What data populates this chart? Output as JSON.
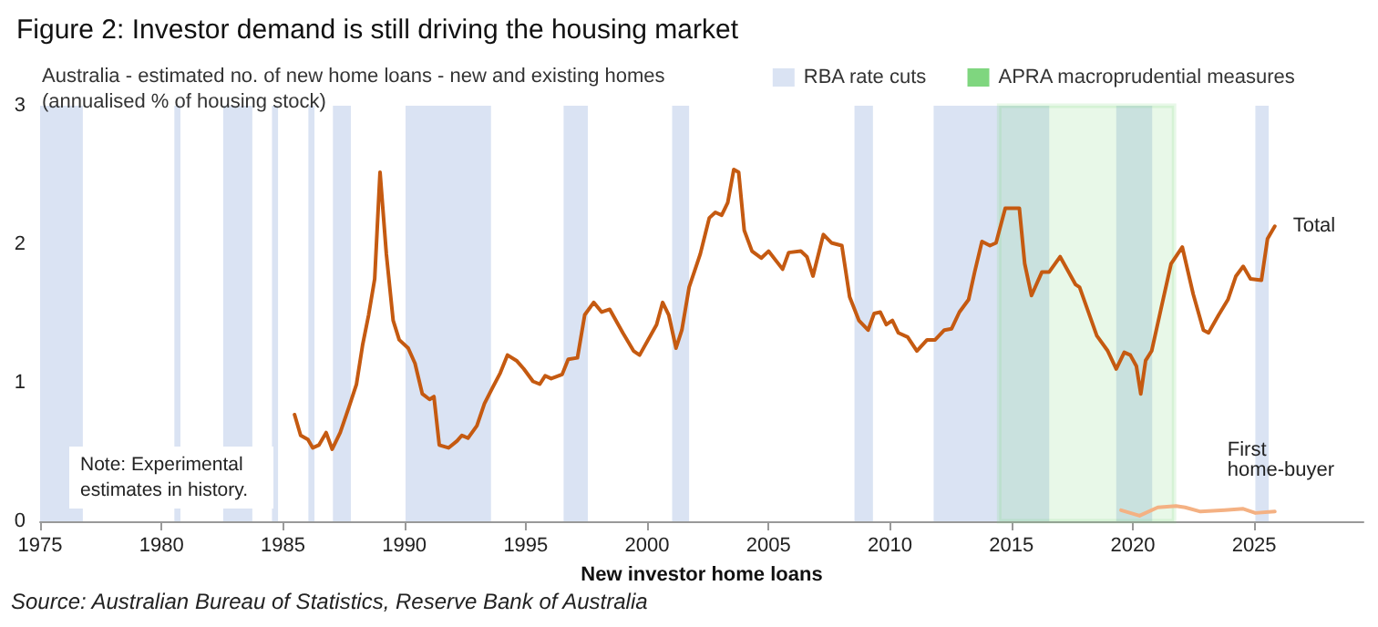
{
  "chart_data": {
    "type": "line",
    "title": "Figure 2: Investor demand is still driving the housing market",
    "subtitle": "Australia - estimated no. of new home loans - new and existing homes\n(annualised % of housing stock)",
    "xlabel": "New investor home loans",
    "annotations": [
      "Note: Experimental estimates in history.",
      "Source: Australian Bureau of Statistics, Reserve Bank of Australia"
    ],
    "series": [
      {
        "name": "Total",
        "color": "#c55a11",
        "x": [
          1985.48,
          1985.73,
          1986.03,
          1986.23,
          1986.48,
          1986.78,
          1987.03,
          1987.36,
          1987.73,
          1988.03,
          1988.28,
          1988.53,
          1988.78,
          1989.0,
          1989.26,
          1989.54,
          1989.79,
          1990.16,
          1990.44,
          1990.74,
          1991.04,
          1991.22,
          1991.44,
          1991.82,
          1992.17,
          1992.37,
          1992.62,
          1992.99,
          1993.3,
          1993.62,
          1993.95,
          1994.25,
          1994.62,
          1994.92,
          1995.3,
          1995.58,
          1995.8,
          1996.05,
          1996.5,
          1996.75,
          1997.13,
          1997.43,
          1997.8,
          1998.13,
          1998.46,
          1999.0,
          1999.44,
          1999.69,
          2000.39,
          2000.64,
          2000.89,
          2001.19,
          2001.43,
          2001.73,
          2002.19,
          2002.56,
          2002.81,
          2003.07,
          2003.32,
          2003.57,
          2003.77,
          2004.0,
          2004.32,
          2004.7,
          2005.0,
          2005.58,
          2005.83,
          2006.33,
          2006.58,
          2006.83,
          2007.26,
          2007.59,
          2008.02,
          2008.34,
          2008.72,
          2009.1,
          2009.35,
          2009.6,
          2009.85,
          2010.1,
          2010.35,
          2010.73,
          2011.11,
          2011.53,
          2011.86,
          2012.24,
          2012.54,
          2012.86,
          2013.24,
          2013.49,
          2013.79,
          2014.12,
          2014.37,
          2014.75,
          2015.33,
          2015.55,
          2015.83,
          2016.26,
          2016.56,
          2017.01,
          2017.64,
          2017.81,
          2018.52,
          2018.97,
          2019.32,
          2019.65,
          2019.9,
          2020.15,
          2020.33,
          2020.53,
          2020.78,
          2021.16,
          2021.58,
          2022.04,
          2022.49,
          2022.91,
          2023.12,
          2023.54,
          2023.92,
          2024.25,
          2024.55,
          2024.85,
          2025.3,
          2025.55,
          2025.85
        ],
        "values": [
          0.77,
          0.62,
          0.59,
          0.53,
          0.55,
          0.64,
          0.52,
          0.64,
          0.83,
          0.99,
          1.27,
          1.49,
          1.75,
          2.52,
          1.93,
          1.45,
          1.31,
          1.25,
          1.14,
          0.92,
          0.88,
          0.9,
          0.55,
          0.53,
          0.58,
          0.62,
          0.6,
          0.69,
          0.85,
          0.96,
          1.07,
          1.2,
          1.16,
          1.1,
          1.01,
          0.99,
          1.05,
          1.03,
          1.06,
          1.17,
          1.18,
          1.49,
          1.58,
          1.51,
          1.53,
          1.36,
          1.23,
          1.2,
          1.42,
          1.58,
          1.49,
          1.25,
          1.38,
          1.69,
          1.93,
          2.19,
          2.23,
          2.21,
          2.3,
          2.54,
          2.52,
          2.1,
          1.95,
          1.9,
          1.95,
          1.82,
          1.94,
          1.95,
          1.91,
          1.77,
          2.07,
          2.01,
          1.99,
          1.62,
          1.45,
          1.38,
          1.5,
          1.51,
          1.42,
          1.45,
          1.36,
          1.33,
          1.23,
          1.31,
          1.31,
          1.38,
          1.39,
          1.51,
          1.6,
          1.8,
          2.02,
          1.99,
          2.01,
          2.26,
          2.26,
          1.86,
          1.63,
          1.8,
          1.8,
          1.91,
          1.71,
          1.69,
          1.34,
          1.23,
          1.1,
          1.22,
          1.2,
          1.12,
          0.92,
          1.16,
          1.23,
          1.53,
          1.86,
          1.98,
          1.64,
          1.38,
          1.36,
          1.49,
          1.6,
          1.77,
          1.84,
          1.75,
          1.74,
          2.04,
          2.13
        ]
      },
      {
        "name": "First home-buyer",
        "color": "#f4b183",
        "x": [
          2019.52,
          2020.28,
          2021.03,
          2021.78,
          2022.16,
          2022.79,
          2023.79,
          2024.55,
          2025.05,
          2025.85
        ],
        "values": [
          0.08,
          0.04,
          0.1,
          0.11,
          0.1,
          0.07,
          0.08,
          0.09,
          0.06,
          0.07
        ]
      }
    ],
    "xlim": [
      1975,
      2029.5
    ],
    "xticks": [
      1975,
      1980,
      1985,
      1990,
      1995,
      2000,
      2005,
      2010,
      2015,
      2020,
      2025
    ],
    "ylim": [
      0,
      3
    ],
    "yticks": [
      0,
      1,
      2,
      3
    ],
    "grid": false,
    "marker": "none",
    "line_style": "solid",
    "legend": "top right",
    "bands": [
      {
        "axis": "x",
        "from": 1975,
        "to": 1976.76,
        "label": "RBA rate cuts",
        "color": "#dae3f3"
      },
      {
        "axis": "x",
        "from": 1980.53,
        "to": 1980.78,
        "color": "#dae3f3"
      },
      {
        "axis": "x",
        "from": 1982.54,
        "to": 1983.74,
        "color": "#dae3f3"
      },
      {
        "axis": "x",
        "from": 1984.55,
        "to": 1984.8,
        "color": "#dae3f3"
      },
      {
        "axis": "x",
        "from": 1986.05,
        "to": 1986.3,
        "color": "#dae3f3"
      },
      {
        "axis": "x",
        "from": 1987.06,
        "to": 1987.8,
        "color": "#dae3f3"
      },
      {
        "axis": "x",
        "from": 1990.05,
        "to": 1993.57,
        "color": "#dae3f3"
      },
      {
        "axis": "x",
        "from": 1996.56,
        "to": 1997.56,
        "color": "#dae3f3"
      },
      {
        "axis": "x",
        "from": 2001.03,
        "to": 2001.73,
        "color": "#dae3f3"
      },
      {
        "axis": "x",
        "from": 2008.54,
        "to": 2009.3,
        "color": "#dae3f3"
      },
      {
        "axis": "x",
        "from": 2011.8,
        "to": 2016.56,
        "color": "#dae3f3"
      },
      {
        "axis": "x",
        "from": 2019.32,
        "to": 2020.8,
        "color": "#dae3f3"
      },
      {
        "axis": "x",
        "from": 2025.05,
        "to": 2025.6,
        "color": "#dae3f3"
      },
      {
        "axis": "x",
        "from": 2014.5,
        "to": 2021.7,
        "label": "APRA macroprudential measures",
        "color": "#7fd67f"
      }
    ]
  }
}
